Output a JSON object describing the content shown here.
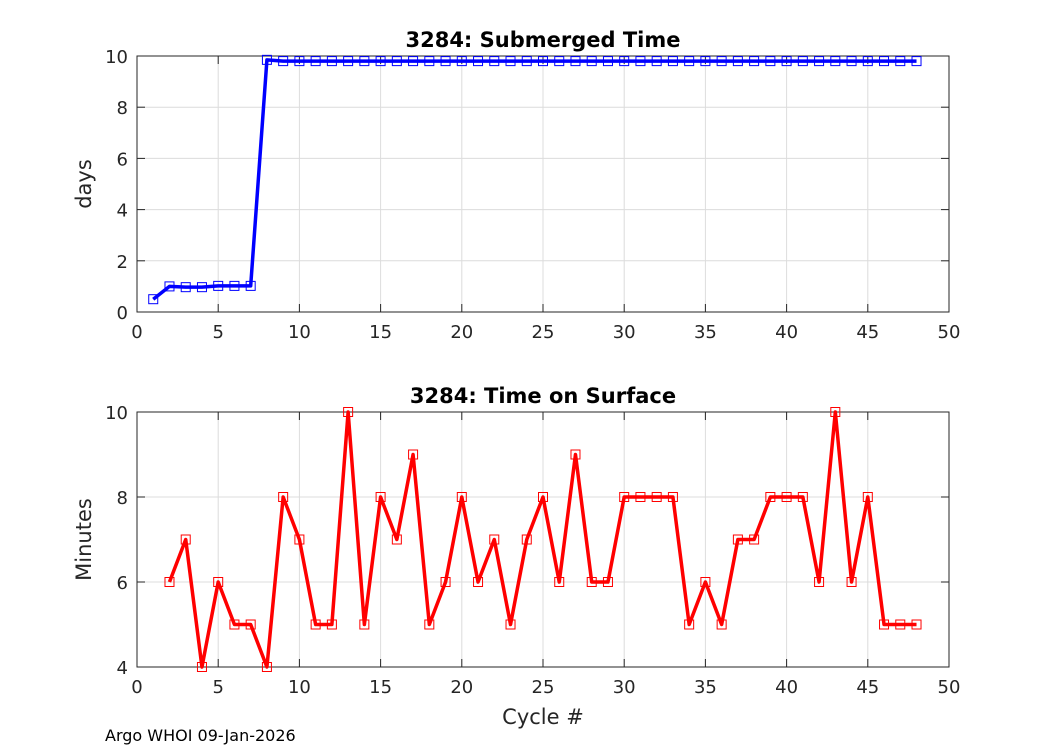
{
  "footer": "Argo WHOI 09-Jan-2026",
  "chart_data": [
    {
      "type": "line",
      "title": "3284: Submerged Time",
      "xlabel": "",
      "ylabel": "days",
      "xlim": [
        0,
        50
      ],
      "ylim": [
        0,
        10
      ],
      "xticks": [
        0,
        5,
        10,
        15,
        20,
        25,
        30,
        35,
        40,
        45,
        50
      ],
      "yticks": [
        0,
        2,
        4,
        6,
        8,
        10
      ],
      "grid": true,
      "color": "#0000ff",
      "marker": "square",
      "x": [
        1,
        2,
        3,
        4,
        5,
        6,
        7,
        8,
        9,
        10,
        11,
        12,
        13,
        14,
        15,
        16,
        17,
        18,
        19,
        20,
        21,
        22,
        23,
        24,
        25,
        26,
        27,
        28,
        29,
        30,
        31,
        32,
        33,
        34,
        35,
        36,
        37,
        38,
        39,
        40,
        41,
        42,
        43,
        44,
        45,
        46,
        47,
        48
      ],
      "values": [
        0.5,
        1.0,
        0.97,
        0.97,
        1.02,
        1.02,
        1.02,
        9.85,
        9.8,
        9.8,
        9.8,
        9.8,
        9.8,
        9.8,
        9.8,
        9.8,
        9.8,
        9.8,
        9.8,
        9.8,
        9.8,
        9.8,
        9.8,
        9.8,
        9.8,
        9.8,
        9.8,
        9.8,
        9.8,
        9.8,
        9.8,
        9.8,
        9.8,
        9.8,
        9.8,
        9.8,
        9.8,
        9.8,
        9.8,
        9.8,
        9.8,
        9.8,
        9.8,
        9.8,
        9.8,
        9.8,
        9.8,
        9.8
      ]
    },
    {
      "type": "line",
      "title": "3284: Time on Surface",
      "xlabel": "Cycle #",
      "ylabel": "Minutes",
      "xlim": [
        0,
        50
      ],
      "ylim": [
        4,
        10
      ],
      "xticks": [
        0,
        5,
        10,
        15,
        20,
        25,
        30,
        35,
        40,
        45,
        50
      ],
      "yticks": [
        4,
        6,
        8,
        10
      ],
      "grid": true,
      "color": "#ff0000",
      "marker": "square",
      "x": [
        2,
        3,
        4,
        5,
        6,
        7,
        8,
        9,
        10,
        11,
        12,
        13,
        14,
        15,
        16,
        17,
        18,
        19,
        20,
        21,
        22,
        23,
        24,
        25,
        26,
        27,
        28,
        29,
        30,
        31,
        32,
        33,
        34,
        35,
        36,
        37,
        38,
        39,
        40,
        41,
        42,
        43,
        44,
        45,
        46,
        47,
        48
      ],
      "values": [
        6,
        7,
        4,
        6,
        5,
        5,
        4,
        8,
        7,
        5,
        5,
        10,
        5,
        8,
        7,
        9,
        5,
        6,
        8,
        6,
        7,
        5,
        7,
        8,
        6,
        9,
        6,
        6,
        8,
        8,
        8,
        8,
        5,
        6,
        5,
        7,
        7,
        8,
        8,
        8,
        6,
        10,
        6,
        8,
        5,
        5,
        5
      ]
    }
  ]
}
